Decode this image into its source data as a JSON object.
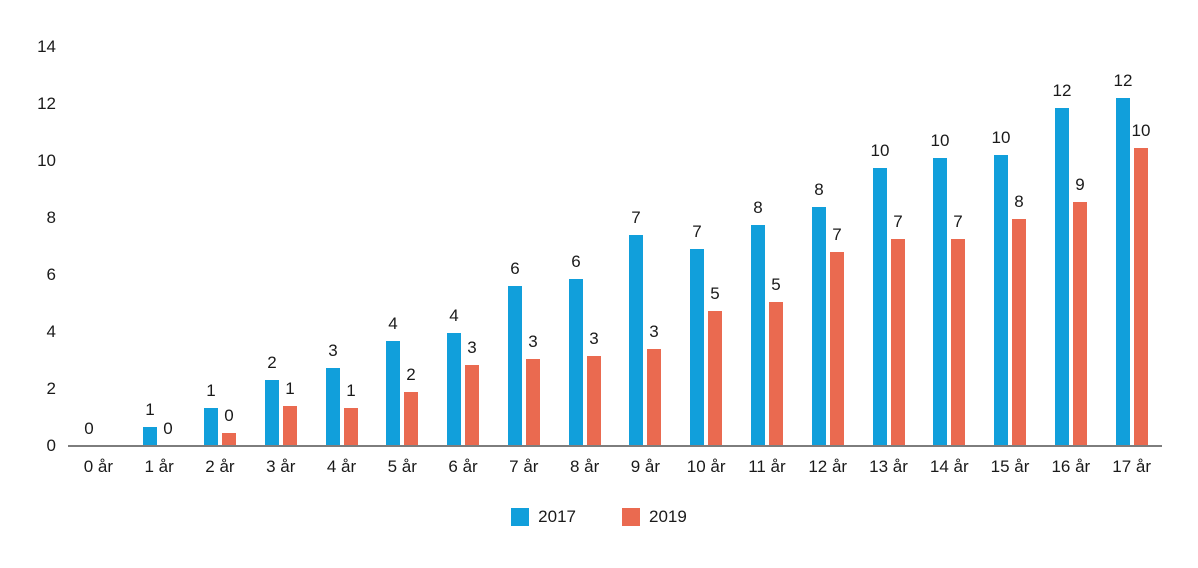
{
  "chart_data": {
    "type": "bar",
    "title": "",
    "xlabel": "",
    "ylabel": "",
    "categories": [
      "0 år",
      "1 år",
      "2 år",
      "3 år",
      "4 år",
      "5 år",
      "6 år",
      "7 år",
      "8 år",
      "9 år",
      "10 år",
      "11 år",
      "12 år",
      "13 år",
      "14 år",
      "15 år",
      "16 år",
      "17 år"
    ],
    "series": [
      {
        "name": "2017",
        "color": "#119FDB",
        "values": [
          0,
          0.65,
          1.35,
          2.3,
          2.75,
          3.7,
          3.95,
          5.6,
          5.85,
          7.4,
          6.9,
          7.75,
          8.4,
          9.75,
          10.1,
          10.2,
          11.85,
          12.2
        ],
        "labels": [
          "0",
          "1",
          "1",
          "2",
          "3",
          "4",
          "4",
          "6",
          "6",
          "7",
          "7",
          "8",
          "8",
          "10",
          "10",
          "10",
          "12",
          "12"
        ]
      },
      {
        "name": "2019",
        "color": "#EA6A50",
        "values": [
          0,
          0,
          0.45,
          1.4,
          1.35,
          1.9,
          2.85,
          3.05,
          3.15,
          3.4,
          4.75,
          5.05,
          6.8,
          7.25,
          7.25,
          7.95,
          8.55,
          10.45
        ],
        "labels": [
          "",
          "0",
          "0",
          "1",
          "1",
          "2",
          "3",
          "3",
          "3",
          "3",
          "5",
          "5",
          "7",
          "7",
          "7",
          "8",
          "9",
          "10"
        ]
      }
    ],
    "ylim": [
      0,
      14
    ],
    "yticks": [
      0,
      2,
      4,
      6,
      8,
      10,
      12,
      14
    ],
    "grid": false,
    "legend_position": "bottom-center",
    "axis_color": "#7d7d7d",
    "label_color": "#1a1a1a"
  }
}
